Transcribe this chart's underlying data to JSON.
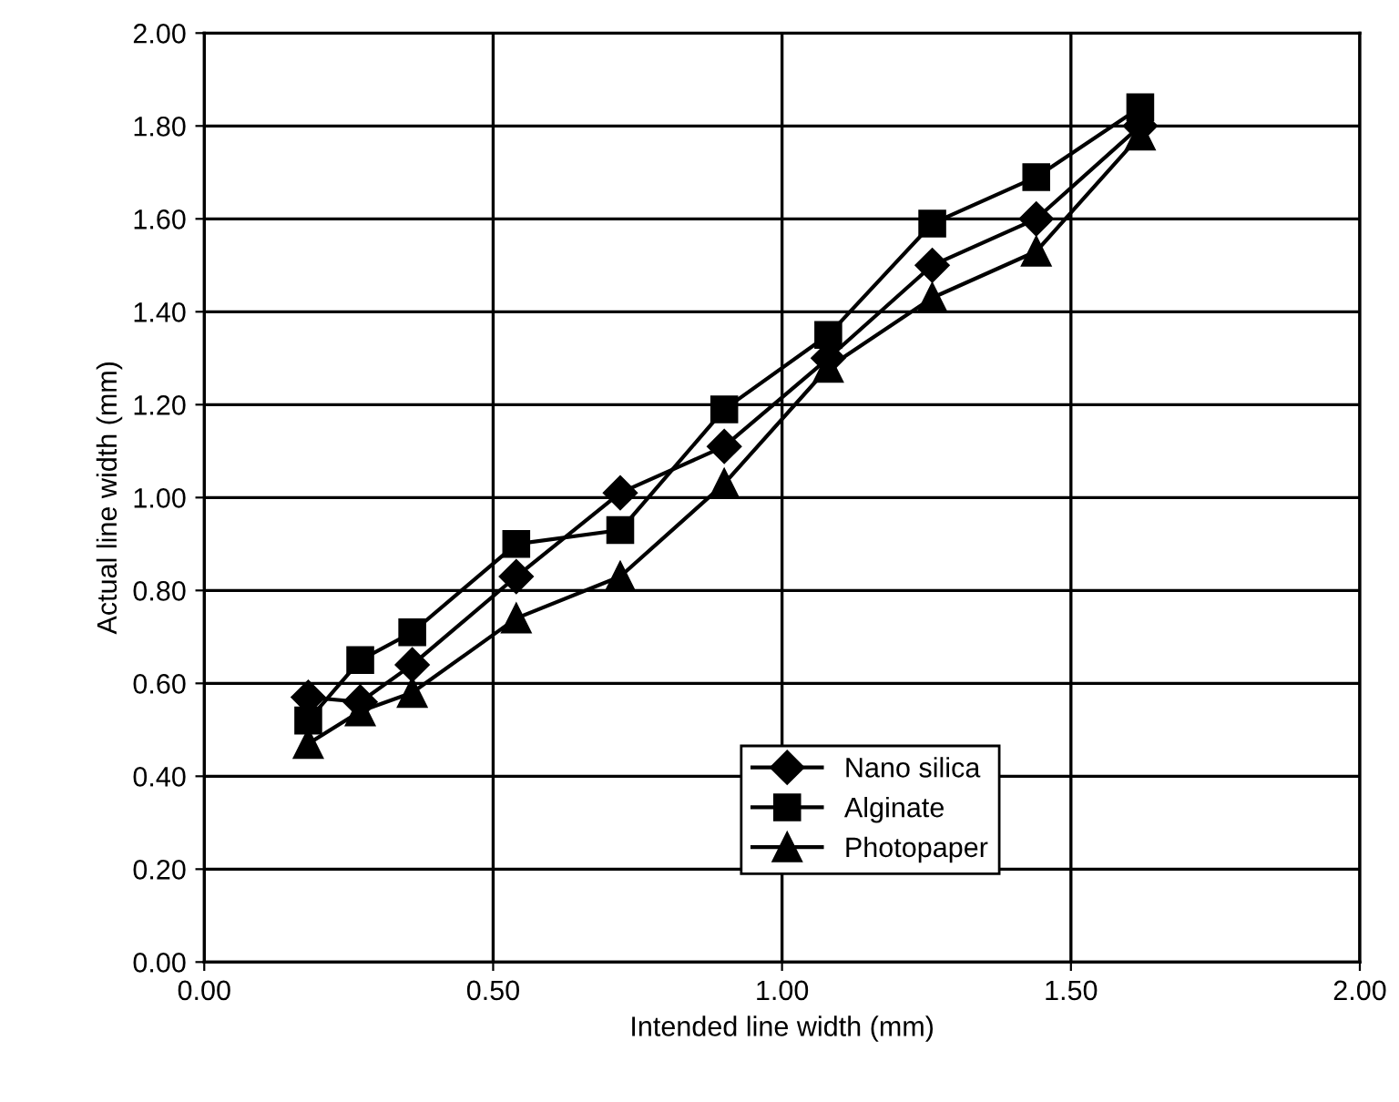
{
  "chart_data": {
    "type": "line",
    "xlabel": "Intended line width (mm)",
    "ylabel": "Actual line width (mm)",
    "x": [
      0.18,
      0.27,
      0.36,
      0.54,
      0.72,
      0.9,
      1.08,
      1.26,
      1.44,
      1.62
    ],
    "series": [
      {
        "name": "Nano silica",
        "color": "#000000",
        "marker": "diamond",
        "values": [
          0.57,
          0.56,
          0.64,
          0.83,
          1.01,
          1.11,
          1.3,
          1.5,
          1.6,
          1.8
        ]
      },
      {
        "name": "Alginate",
        "color": "#000000",
        "marker": "square",
        "values": [
          0.52,
          0.65,
          0.71,
          0.9,
          0.93,
          1.19,
          1.35,
          1.59,
          1.69,
          1.84
        ]
      },
      {
        "name": "Photopaper",
        "color": "#000000",
        "marker": "triangle",
        "values": [
          0.47,
          0.54,
          0.58,
          0.74,
          0.83,
          1.03,
          1.28,
          1.43,
          1.53,
          1.78
        ]
      }
    ],
    "xlim": [
      0,
      2
    ],
    "xticks": [
      {
        "value": 0,
        "label": "0.00"
      },
      {
        "value": 0.5,
        "label": "0.50"
      },
      {
        "value": 1,
        "label": "1.00"
      },
      {
        "value": 1.5,
        "label": "1.50"
      },
      {
        "value": 2,
        "label": "2.00"
      }
    ],
    "ylim": [
      0,
      2
    ],
    "yticks": [
      {
        "value": 0,
        "label": "0.00"
      },
      {
        "value": 0.2,
        "label": "0.20"
      },
      {
        "value": 0.4,
        "label": "0.40"
      },
      {
        "value": 0.6,
        "label": "0.60"
      },
      {
        "value": 0.8,
        "label": "0.80"
      },
      {
        "value": 1.0,
        "label": "1.00"
      },
      {
        "value": 1.2,
        "label": "1.20"
      },
      {
        "value": 1.4,
        "label": "1.40"
      },
      {
        "value": 1.6,
        "label": "1.60"
      },
      {
        "value": 1.8,
        "label": "1.80"
      },
      {
        "value": 2.0,
        "label": "2.00"
      }
    ],
    "grid": true,
    "legend": "lower right",
    "line_style": "solid"
  }
}
